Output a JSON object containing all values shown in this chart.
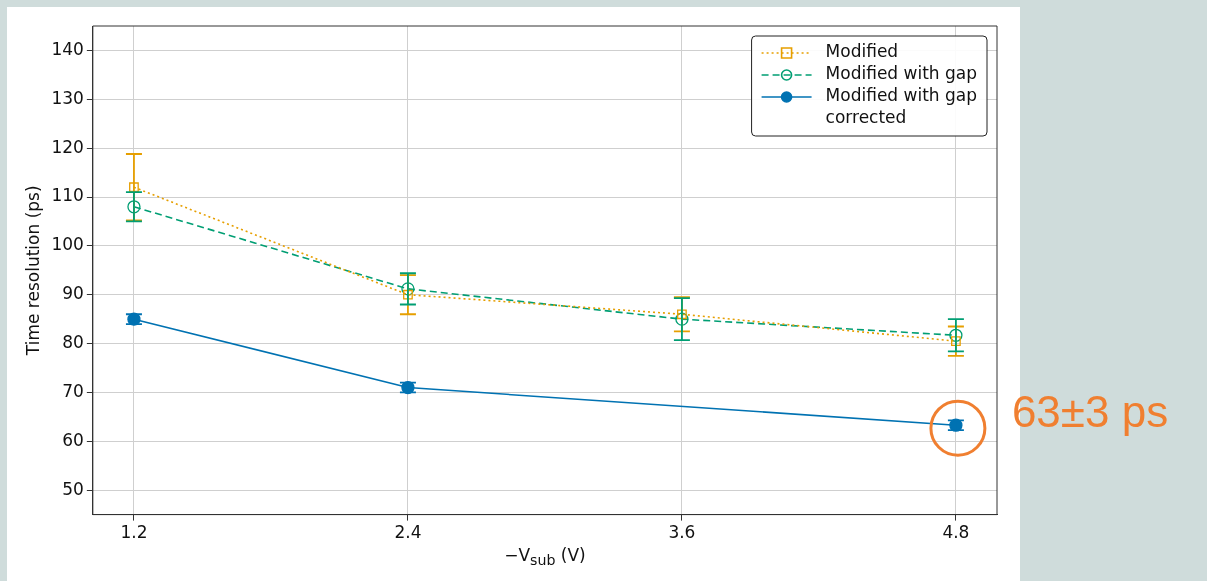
{
  "chart_data": {
    "type": "line",
    "xlabel": "−V$_{sub}$ (V)",
    "ylabel": "Time resolution (ps)",
    "x": [
      1.2,
      2.4,
      3.6,
      4.8
    ],
    "xlim": [
      1.02,
      4.98
    ],
    "xticks": [
      1.2,
      2.4,
      3.6,
      4.8
    ],
    "ylim": [
      45,
      145
    ],
    "yticks": [
      50,
      60,
      70,
      80,
      90,
      100,
      110,
      120,
      130,
      140
    ],
    "grid": true,
    "legend": "top right",
    "series": [
      {
        "name": "Modified",
        "color": "#e69f00",
        "marker": "square",
        "line_style": "dotted",
        "values": [
          112,
          90,
          86,
          80.5
        ],
        "errors": [
          6.8,
          4,
          3.5,
          3
        ]
      },
      {
        "name": "Modified with gap",
        "color": "#009e73",
        "marker": "circle",
        "line_style": "dashed",
        "values": [
          108,
          91.2,
          85,
          81.7
        ],
        "errors": [
          3,
          3.2,
          4.3,
          3.3
        ]
      },
      {
        "name": "Modified with gap corrected",
        "color": "#0072b2",
        "marker": "circle",
        "line_style": "solid",
        "values": [
          85,
          71,
          null,
          63.3
        ],
        "errors": [
          1,
          1,
          null,
          1
        ]
      }
    ],
    "annotations": [
      {
        "text": "63±3 ps",
        "x": 4.8,
        "y": 63.3
      }
    ]
  }
}
